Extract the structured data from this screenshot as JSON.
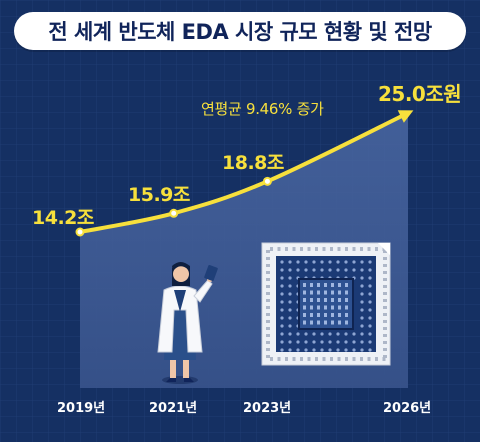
{
  "title": "전 세계 반도체 EDA 시장 규모 현황 및 전망",
  "colors": {
    "background": "#153063",
    "title_text": "#10245a",
    "line": "#f7e03c",
    "area": "#3d5a93",
    "x_labels": "#ffffff"
  },
  "chart_data": {
    "type": "line",
    "title": "전 세계 반도체 EDA 시장 규모 현황 및 전망",
    "x": [
      2019,
      2021,
      2023,
      2026
    ],
    "x_tick_labels": [
      "2019년",
      "2021년",
      "2023년",
      "2026년"
    ],
    "values": [
      14.2,
      15.9,
      18.8,
      25.0
    ],
    "data_labels": [
      "14.2조",
      "15.9조",
      "18.8조",
      "25.0조원"
    ],
    "annotation": "연평균 9.46% 증가",
    "xlabel": "",
    "ylabel": "",
    "grid": true,
    "legend": "none"
  }
}
